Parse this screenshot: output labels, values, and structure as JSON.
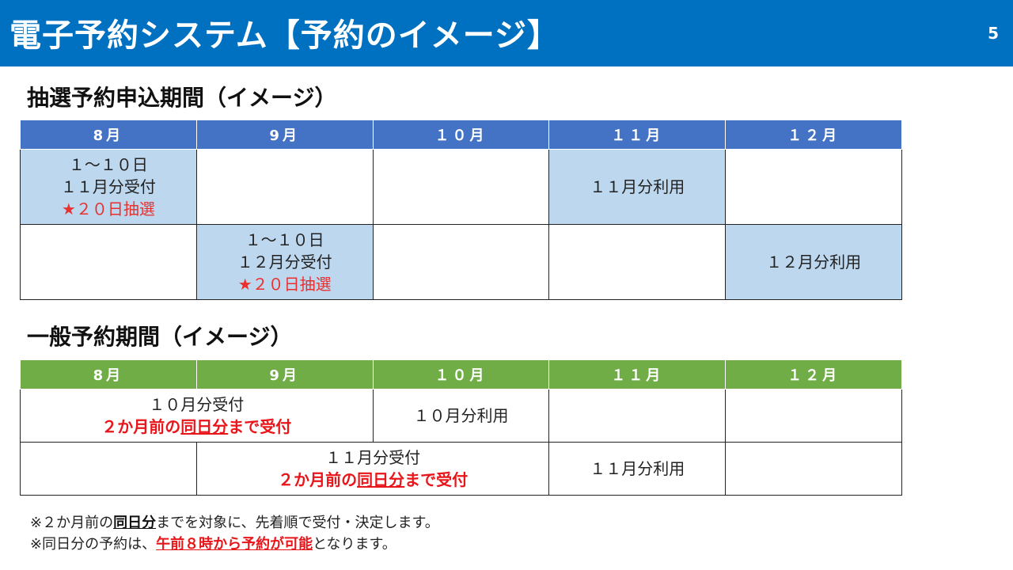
{
  "header": {
    "title": "電子予約システム【予約のイメージ】",
    "page_number": "5"
  },
  "lottery": {
    "heading": "抽選予約申込期間（イメージ）",
    "months": [
      "8月",
      "9月",
      "１０月",
      "１１月",
      "１２月"
    ],
    "row1": {
      "c1_l1": "１～１０日",
      "c1_l2": "１１月分受付",
      "c1_l3": "★２０日抽選",
      "c4": "１１月分利用"
    },
    "row2": {
      "c2_l1": "１～１０日",
      "c2_l2": "１２月分受付",
      "c2_l3": "★２０日抽選",
      "c5": "１２月分利用"
    }
  },
  "general": {
    "heading": "一般予約期間（イメージ）",
    "months": [
      "8月",
      "9月",
      "１０月",
      "１１月",
      "１２月"
    ],
    "row1": {
      "recv": "１０月分受付",
      "rule_a": "２か月前の",
      "rule_b": "同日分",
      "rule_c": "まで受付",
      "use": "１０月分利用"
    },
    "row2": {
      "recv": "１１月分受付",
      "rule_a": "２か月前の",
      "rule_b": "同日分",
      "rule_c": "まで受付",
      "use": "１１月分利用"
    }
  },
  "notes": {
    "n1_a": "※２か月前の",
    "n1_b": "同日分",
    "n1_c": "までを対象に、先着順で受付・決定します。",
    "n2_a": "※同日分の予約は、",
    "n2_b": "午前８時から予約が可能",
    "n2_c": "となります。"
  },
  "colors": {
    "header_bg": "#0070c0",
    "lottery_header": "#4472c4",
    "general_header": "#70ad47",
    "highlight": "#bdd7ee",
    "accent_red": "#e8151a"
  }
}
